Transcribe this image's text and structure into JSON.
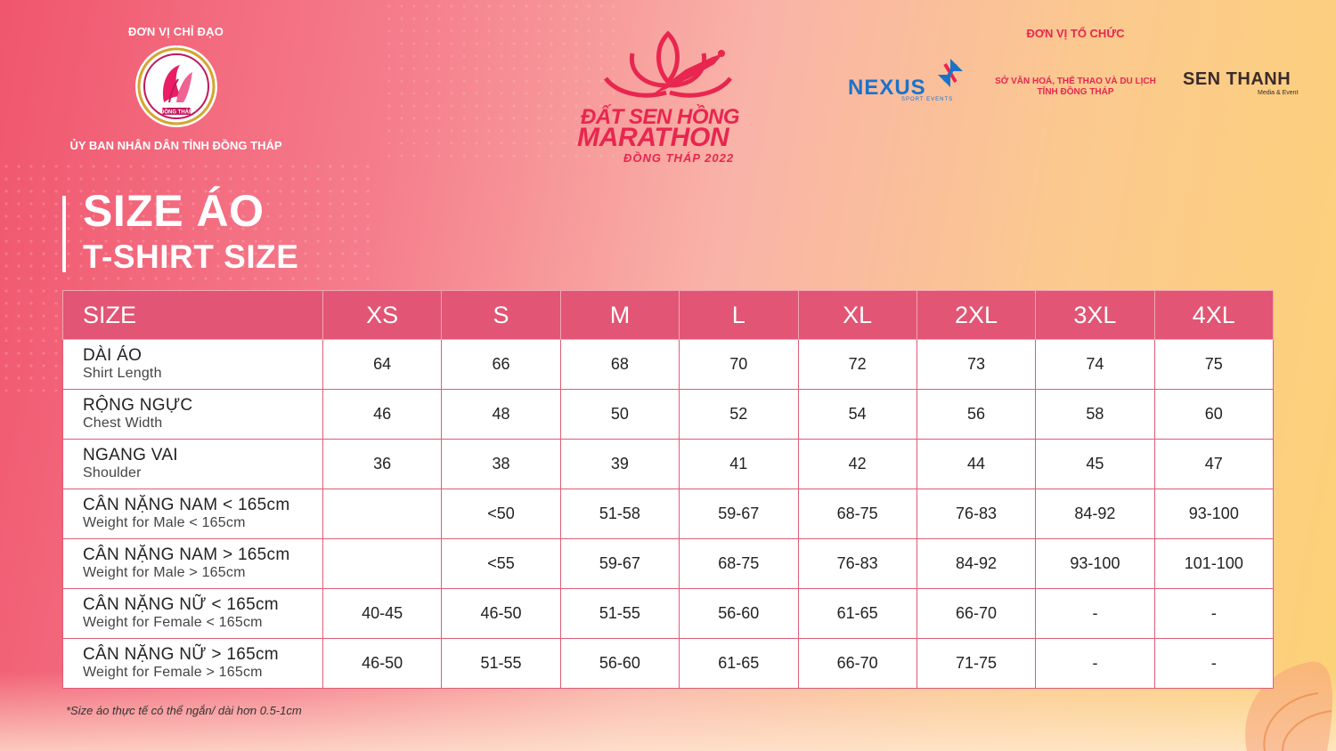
{
  "header": {
    "left_caption": "ĐƠN VỊ CHỈ ĐẠO",
    "left_org": "ỦY BAN NHÂN DÂN TỈNH ĐỒNG THÁP",
    "seal_text": "ĐỒNG THÁP",
    "event_logo": {
      "line1": "ĐẤT SEN HỒNG",
      "line2": "MARATHON",
      "line3": "ĐỒNG THÁP 2022"
    },
    "right_caption": "ĐƠN VỊ TỔ CHỨC",
    "nexus": {
      "name": "NEXUS",
      "sub": "SPORT EVENTS"
    },
    "department": {
      "line1": "SỞ VĂN HOÁ, THỂ THAO VÀ DU LỊCH",
      "line2": "TỈNH ĐỒNG THÁP"
    },
    "senthanh": {
      "name": "SEN THANH",
      "sub": "Media & Event"
    }
  },
  "title": {
    "vi": "SIZE ÁO",
    "en": "T-SHIRT SIZE"
  },
  "colors": {
    "header_row": "#e25574",
    "brand_pink": "#e8264f"
  },
  "table": {
    "header": [
      "SIZE",
      "XS",
      "S",
      "M",
      "L",
      "XL",
      "2XL",
      "3XL",
      "4XL"
    ],
    "rows": [
      {
        "vi": "DÀI ÁO",
        "en": "Shirt Length",
        "values": [
          "64",
          "66",
          "68",
          "70",
          "72",
          "73",
          "74",
          "75"
        ]
      },
      {
        "vi": "RỘNG NGỰC",
        "en": "Chest Width",
        "values": [
          "46",
          "48",
          "50",
          "52",
          "54",
          "56",
          "58",
          "60"
        ]
      },
      {
        "vi": "NGANG VAI",
        "en": "Shoulder",
        "values": [
          "36",
          "38",
          "39",
          "41",
          "42",
          "44",
          "45",
          "47"
        ]
      },
      {
        "vi": "CÂN NẶNG NAM < 165cm",
        "en": "Weight for Male < 165cm",
        "values": [
          "",
          "<50",
          "51-58",
          "59-67",
          "68-75",
          "76-83",
          "84-92",
          "93-100"
        ]
      },
      {
        "vi": "CÂN NẶNG NAM > 165cm",
        "en": "Weight for Male > 165cm",
        "values": [
          "",
          "<55",
          "59-67",
          "68-75",
          "76-83",
          "84-92",
          "93-100",
          "101-100"
        ]
      },
      {
        "vi": "CÂN NẶNG NỮ < 165cm",
        "en": "Weight for Female < 165cm",
        "values": [
          "40-45",
          "46-50",
          "51-55",
          "56-60",
          "61-65",
          "66-70",
          "-",
          "-"
        ]
      },
      {
        "vi": "CÂN NẶNG NỮ > 165cm",
        "en": "Weight for Female > 165cm",
        "values": [
          "46-50",
          "51-55",
          "56-60",
          "61-65",
          "66-70",
          "71-75",
          "-",
          "-"
        ]
      }
    ]
  },
  "footnote": "*Size áo thực tế có thể ngắn/ dài hơn 0.5-1cm"
}
